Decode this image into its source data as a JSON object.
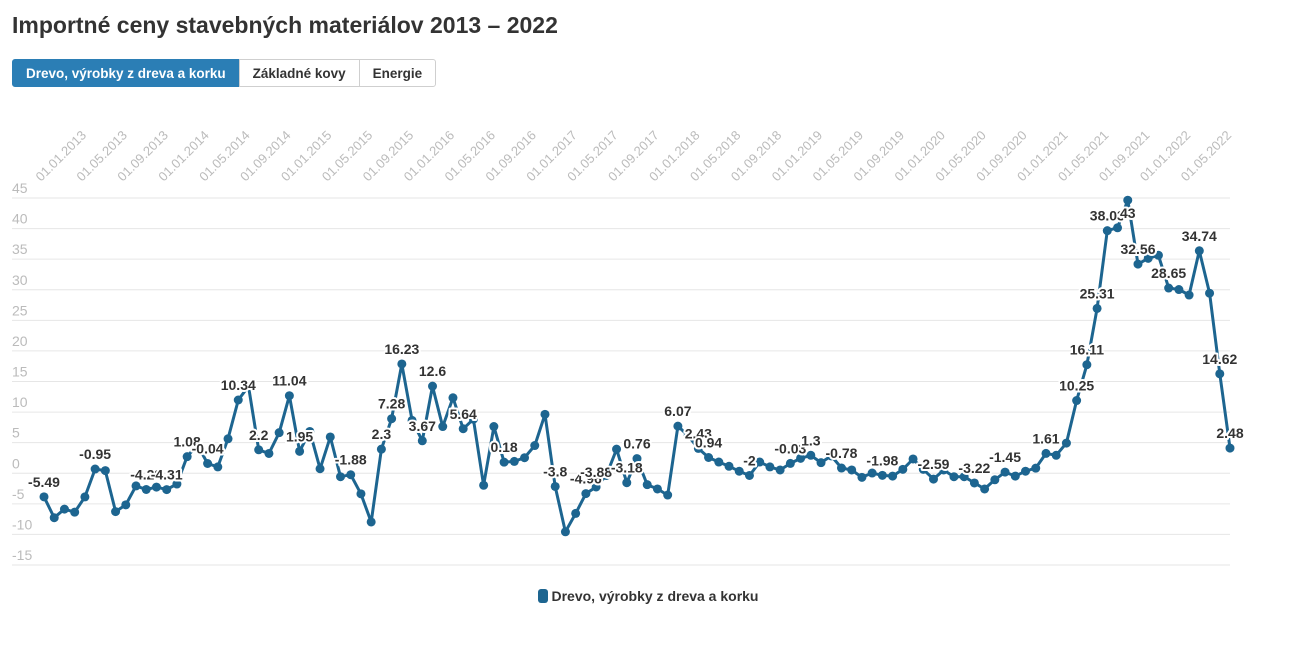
{
  "title": "Importné ceny stavebných materiálov 2013 – 2022",
  "tabs": [
    {
      "label": "Drevo, výrobky z dreva a korku",
      "active": true
    },
    {
      "label": "Základné kovy",
      "active": false
    },
    {
      "label": "Energie",
      "active": false
    }
  ],
  "colors": {
    "series": "#1d6590",
    "tab_active": "#2b7eb5",
    "grid": "#e6e6e6",
    "axis_text": "#bbbbbb"
  },
  "chart_data": {
    "type": "line",
    "title": "Importné ceny stavebných materiálov 2013 – 2022",
    "xlabel": "",
    "ylabel": "",
    "ylim": [
      -15,
      45
    ],
    "yticks": [
      -15,
      -10,
      -5,
      0,
      5,
      10,
      15,
      20,
      25,
      30,
      35,
      40,
      45
    ],
    "grid": true,
    "legend_position": "bottom-center",
    "x_tick_labels": [
      "01.01.2013",
      "01.05.2013",
      "01.09.2013",
      "01.01.2014",
      "01.05.2014",
      "01.09.2014",
      "01.01.2015",
      "01.05.2015",
      "01.09.2015",
      "01.01.2016",
      "01.05.2016",
      "01.09.2016",
      "01.01.2017",
      "01.05.2017",
      "01.09.2017",
      "01.01.2018",
      "01.05.2018",
      "01.09.2018",
      "01.01.2019",
      "01.05.2019",
      "01.09.2019",
      "01.01.2020",
      "01.05.2020",
      "01.09.2020",
      "01.01.2021",
      "01.05.2021",
      "01.09.2021",
      "01.01.2022",
      "01.05.2022"
    ],
    "x_start": "01.01.2013",
    "x_end": "01.12.2022",
    "series": [
      {
        "name": "Drevo, výrobky z dreva a korku",
        "color": "#1d6590",
        "values": [
          -5.49,
          -8.9,
          -7.5,
          -8.0,
          -5.5,
          -0.95,
          -1.2,
          -7.9,
          -6.8,
          -3.7,
          -4.29,
          -3.9,
          -4.31,
          -3.4,
          1.08,
          3.0,
          -0.04,
          -0.6,
          4.0,
          10.34,
          12.6,
          2.2,
          1.6,
          5.0,
          11.04,
          1.95,
          5.2,
          -0.9,
          4.3,
          -2.2,
          -1.88,
          -5.0,
          -9.6,
          2.3,
          7.28,
          16.23,
          7.0,
          3.67,
          12.6,
          6.0,
          10.7,
          5.64,
          7.2,
          -3.6,
          6.0,
          0.18,
          0.3,
          0.9,
          2.9,
          8.0,
          -3.8,
          -11.2,
          -8.2,
          -4.96,
          -3.88,
          -2.0,
          2.3,
          -3.18,
          0.76,
          -3.5,
          -4.2,
          -5.2,
          6.07,
          4.5,
          2.43,
          0.94,
          0.2,
          -0.5,
          -1.3,
          -2.0,
          0.2,
          -0.6,
          -1.1,
          -0.03,
          0.8,
          1.3,
          0.1,
          1.2,
          -0.78,
          -1.1,
          -2.3,
          -1.6,
          -1.98,
          -2.1,
          -1.0,
          0.7,
          -1.0,
          -2.59,
          -1.1,
          -2.2,
          -2.2,
          -3.22,
          -4.2,
          -2.7,
          -1.45,
          -2.1,
          -1.3,
          -0.8,
          1.61,
          1.3,
          3.3,
          10.25,
          16.11,
          25.31,
          38.03,
          38.5,
          43,
          32.56,
          33.5,
          34.0,
          28.65,
          28.4,
          27.5,
          34.74,
          27.8,
          14.62,
          2.48
        ]
      }
    ],
    "data_labels": [
      {
        "i": 0,
        "text": "-5.49"
      },
      {
        "i": 5,
        "text": "-0.95"
      },
      {
        "i": 10,
        "text": "-4.29"
      },
      {
        "i": 12,
        "text": "-4.31"
      },
      {
        "i": 14,
        "text": "1.08"
      },
      {
        "i": 16,
        "text": "-0.04"
      },
      {
        "i": 19,
        "text": "10.34"
      },
      {
        "i": 21,
        "text": "2.2"
      },
      {
        "i": 24,
        "text": "11.04"
      },
      {
        "i": 25,
        "text": "1.95"
      },
      {
        "i": 30,
        "text": "-1.88"
      },
      {
        "i": 33,
        "text": "2.3"
      },
      {
        "i": 34,
        "text": "7.28"
      },
      {
        "i": 35,
        "text": "16.23"
      },
      {
        "i": 37,
        "text": "3.67"
      },
      {
        "i": 38,
        "text": "12.6"
      },
      {
        "i": 41,
        "text": "5.64"
      },
      {
        "i": 45,
        "text": "0.18"
      },
      {
        "i": 50,
        "text": "-3.8"
      },
      {
        "i": 53,
        "text": "-4.96"
      },
      {
        "i": 54,
        "text": "-3.88"
      },
      {
        "i": 57,
        "text": "-3.18"
      },
      {
        "i": 58,
        "text": "0.76"
      },
      {
        "i": 62,
        "text": "6.07"
      },
      {
        "i": 64,
        "text": "2.43"
      },
      {
        "i": 65,
        "text": "0.94"
      },
      {
        "i": 69,
        "text": "-2"
      },
      {
        "i": 73,
        "text": "-0.03"
      },
      {
        "i": 75,
        "text": "1.3"
      },
      {
        "i": 78,
        "text": "-0.78"
      },
      {
        "i": 82,
        "text": "-1.98"
      },
      {
        "i": 87,
        "text": "-2.59"
      },
      {
        "i": 91,
        "text": "-3.22"
      },
      {
        "i": 94,
        "text": "-1.45"
      },
      {
        "i": 98,
        "text": "1.61"
      },
      {
        "i": 101,
        "text": "10.25"
      },
      {
        "i": 102,
        "text": "16.11"
      },
      {
        "i": 103,
        "text": "25.31"
      },
      {
        "i": 104,
        "text": "38.03"
      },
      {
        "i": 106,
        "text": "43"
      },
      {
        "i": 107,
        "text": "32.56"
      },
      {
        "i": 110,
        "text": "28.65"
      },
      {
        "i": 113,
        "text": "34.74"
      },
      {
        "i": 115,
        "text": "14.62"
      },
      {
        "i": 116,
        "text": "2.48"
      }
    ]
  }
}
